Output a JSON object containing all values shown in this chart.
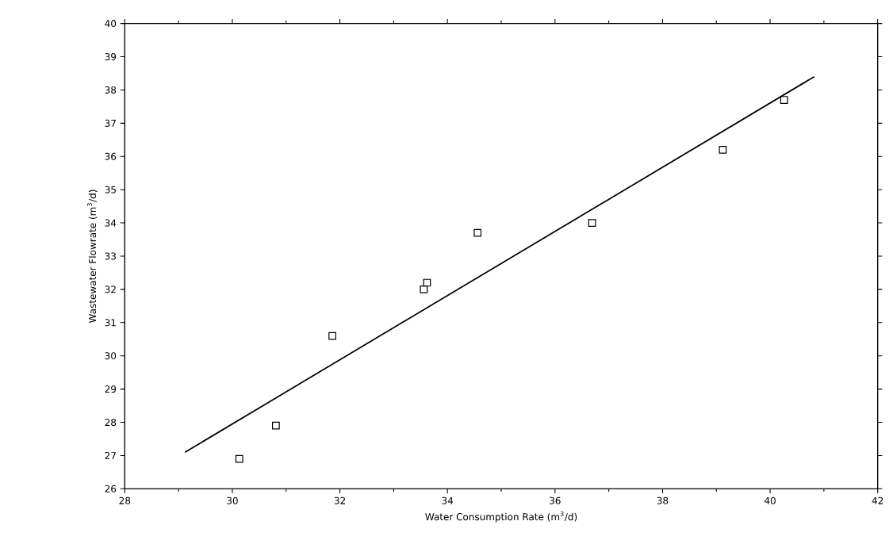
{
  "chart_data": {
    "type": "scatter",
    "xlabel": "Water Consumption Rate (m$^{3}$/d)",
    "ylabel": "Wastewater Flowrate (m$^{3}$/d)",
    "xlim": [
      28,
      42
    ],
    "ylim": [
      26,
      40
    ],
    "xticks": [
      28,
      30,
      32,
      34,
      36,
      38,
      40,
      42
    ],
    "yticks": [
      26,
      27,
      28,
      29,
      30,
      31,
      32,
      33,
      34,
      35,
      36,
      37,
      38,
      39,
      40
    ],
    "grid": false,
    "series": [
      {
        "marker": "square",
        "color": "#000000",
        "x": [
          30.13,
          30.81,
          31.86,
          33.56,
          33.62,
          34.56,
          36.69,
          39.12,
          40.26
        ],
        "values": [
          26.9,
          27.9,
          30.6,
          32.0,
          32.2,
          33.7,
          34.0,
          36.2,
          37.7
        ]
      },
      {
        "type": "line",
        "marker": "none",
        "line_style": "solid",
        "color": "#000000",
        "x": [
          29.12,
          40.82
        ],
        "values": [
          27.1,
          38.4
        ]
      }
    ]
  }
}
